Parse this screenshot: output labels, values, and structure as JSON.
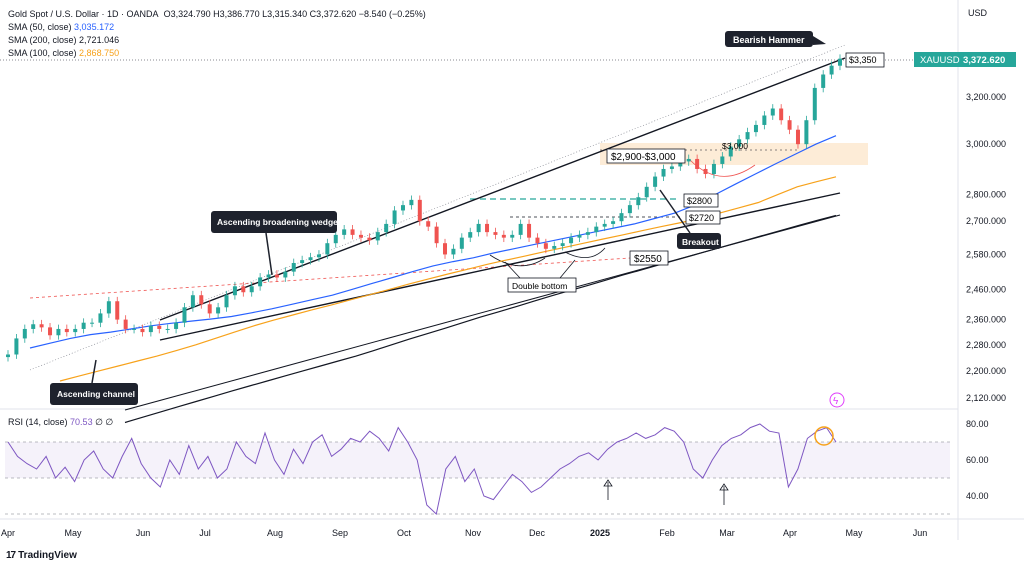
{
  "legend": {
    "title": "Gold Spot / U.S. Dollar · 1D · OANDA",
    "ohlc": "O3,324.790  H3,386.770  L3,315.340  C3,372.620  −8.540 (−0.25%)",
    "sma50_label": "SMA (50, close)",
    "sma50_value": "3,035.172",
    "sma200_label": "SMA (200, close)",
    "sma200_value": "2,721.046",
    "sma100_label": "SMA (100, close)",
    "sma100_value": "2,868.750"
  },
  "currency": "USD",
  "symbol_badge": {
    "symbol": "XAUUSD",
    "price": "3,372.620"
  },
  "rsi_legend": {
    "label": "RSI (14, close)",
    "value": "70.53",
    "extra": "∅ ∅"
  },
  "brand": {
    "logo": "17",
    "name": "TradingView"
  },
  "colors": {
    "up": "#26a69a",
    "down": "#ef5350",
    "sma50": "#2962ff",
    "sma100": "#f7a21b",
    "sma200": "#131722",
    "rsi": "#7e57c2",
    "badge": "#26a69a"
  },
  "chart_data": {
    "type": "candlestick",
    "price_scale": "log",
    "y_ticks": [
      "3,200.000",
      "3,000.000",
      "2,800.000",
      "2,700.000",
      "2,580.000",
      "2,460.000",
      "2,360.000",
      "2,280.000",
      "2,200.000",
      "2,120.000"
    ],
    "y_tick_values": [
      3200,
      3000,
      2800,
      2700,
      2580,
      2460,
      2360,
      2280,
      2200,
      2120
    ],
    "x_ticks": [
      "Apr",
      "May",
      "Jun",
      "Jul",
      "Aug",
      "Sep",
      "Oct",
      "Nov",
      "Dec",
      "2025",
      "Feb",
      "Mar",
      "Apr",
      "May",
      "Jun"
    ],
    "closes": [
      2250,
      2300,
      2330,
      2345,
      2335,
      2310,
      2330,
      2320,
      2330,
      2350,
      2350,
      2380,
      2420,
      2360,
      2330,
      2330,
      2320,
      2340,
      2330,
      2330,
      2350,
      2400,
      2440,
      2410,
      2380,
      2400,
      2440,
      2470,
      2450,
      2470,
      2500,
      2510,
      2500,
      2520,
      2550,
      2560,
      2570,
      2580,
      2620,
      2650,
      2670,
      2650,
      2640,
      2630,
      2660,
      2690,
      2740,
      2760,
      2780,
      2700,
      2680,
      2620,
      2580,
      2600,
      2640,
      2660,
      2690,
      2660,
      2650,
      2640,
      2650,
      2690,
      2640,
      2620,
      2600,
      2610,
      2620,
      2640,
      2650,
      2660,
      2680,
      2690,
      2700,
      2730,
      2760,
      2790,
      2830,
      2870,
      2900,
      2910,
      2930,
      2940,
      2900,
      2880,
      2920,
      2950,
      2990,
      3020,
      3050,
      3080,
      3120,
      3150,
      3100,
      3060,
      3000,
      3100,
      3240,
      3300,
      3340,
      3372
    ],
    "sma50": [
      2270,
      2285,
      2300,
      2312,
      2320,
      2330,
      2340,
      2348,
      2355,
      2362,
      2370,
      2382,
      2395,
      2410,
      2425,
      2440,
      2460,
      2480,
      2500,
      2520,
      2540,
      2555,
      2568,
      2585,
      2600,
      2615,
      2630,
      2645,
      2660,
      2675,
      2690,
      2710,
      2730,
      2760,
      2800,
      2840,
      2880,
      2920,
      2960,
      3000,
      3035
    ],
    "sma100": [
      2170,
      2185,
      2200,
      2215,
      2230,
      2245,
      2262,
      2280,
      2300,
      2320,
      2340,
      2358,
      2375,
      2392,
      2408,
      2425,
      2442,
      2460,
      2478,
      2495,
      2512,
      2528,
      2545,
      2560,
      2575,
      2590,
      2605,
      2620,
      2635,
      2650,
      2665,
      2680,
      2695,
      2710,
      2730,
      2750,
      2770,
      2800,
      2830,
      2850,
      2869
    ],
    "sma200": [
      2050,
      2065,
      2080,
      2095,
      2110,
      2125,
      2140,
      2155,
      2170,
      2185,
      2200,
      2215,
      2230,
      2245,
      2262,
      2280,
      2298,
      2315,
      2332,
      2350,
      2368,
      2385,
      2402,
      2420,
      2438,
      2455,
      2472,
      2490,
      2508,
      2525,
      2543,
      2560,
      2578,
      2596,
      2614,
      2632,
      2650,
      2668,
      2686,
      2704,
      2721
    ],
    "rsi": {
      "y_ticks": [
        "80.00",
        "60.00",
        "40.00"
      ],
      "y_tick_values": [
        80,
        60,
        40
      ],
      "values": [
        70,
        62,
        58,
        55,
        62,
        50,
        56,
        48,
        60,
        65,
        55,
        50,
        62,
        72,
        58,
        50,
        45,
        60,
        52,
        68,
        55,
        62,
        50,
        55,
        70,
        62,
        58,
        75,
        60,
        52,
        66,
        58,
        70,
        74,
        62,
        66,
        72,
        70,
        76,
        72,
        65,
        78,
        70,
        60,
        35,
        30,
        55,
        62,
        48,
        55,
        40,
        38,
        45,
        52,
        48,
        42,
        45,
        50,
        55,
        58,
        62,
        64,
        60,
        66,
        70,
        72,
        75,
        72,
        74,
        78,
        76,
        70,
        55,
        50,
        60,
        68,
        72,
        74,
        78,
        80,
        76,
        75,
        45,
        55,
        72,
        76,
        78,
        70
      ]
    },
    "annotations": {
      "bearish_hammer": "Bearish Hammer",
      "level_3350": "$3,350",
      "zone_2900_3000": "$2,900-$3,000",
      "level_3000": "$3,000",
      "level_2800": "$2800",
      "level_2720": "$2720",
      "level_2550": "$2550",
      "breakout": "Breakout",
      "double_bottom": "Double bottom",
      "ascending_broadening_wedge": "Ascending broadening wedge",
      "ascending_channel": "Ascending channel"
    }
  }
}
